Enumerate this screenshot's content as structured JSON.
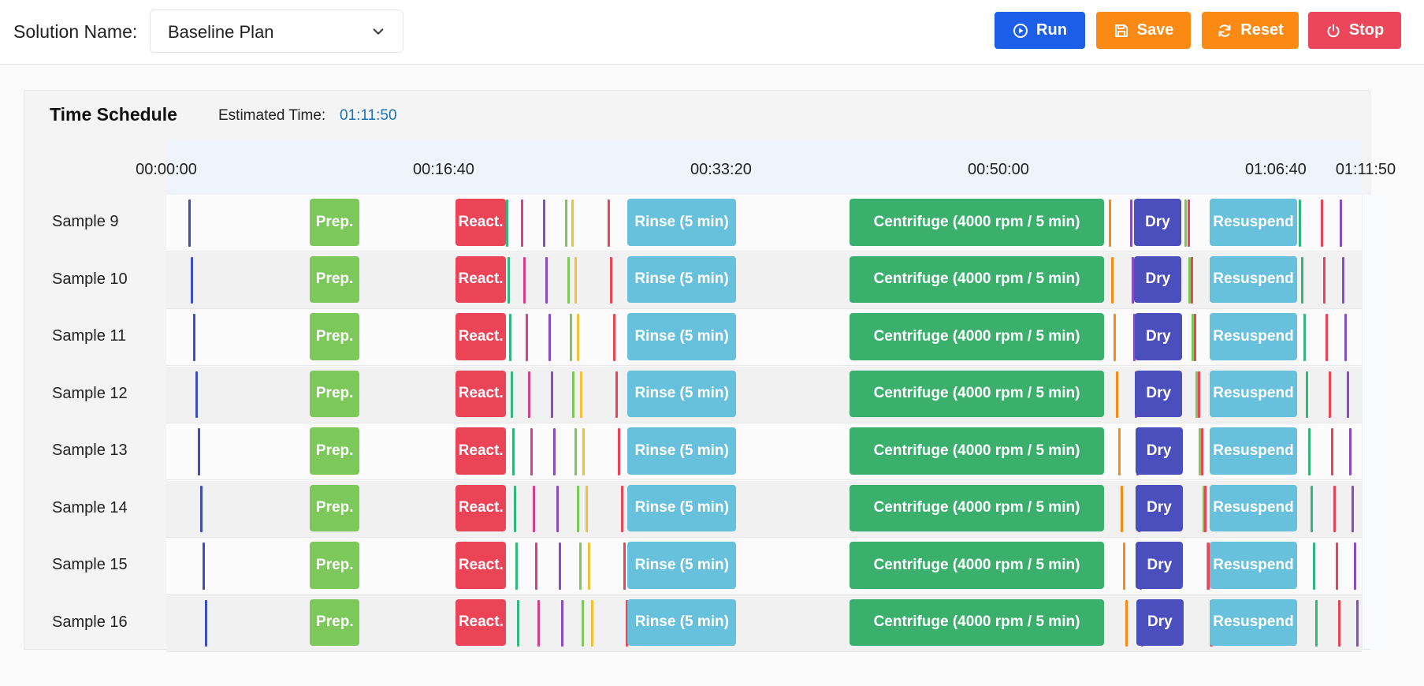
{
  "toolbar": {
    "solution_label": "Solution Name:",
    "solution_value": "Baseline Plan",
    "run_label": "Run",
    "save_label": "Save",
    "reset_label": "Reset",
    "stop_label": "Stop",
    "colors": {
      "run": "#1c5ee8",
      "save": "#fb8a15",
      "reset": "#fb8a15",
      "stop": "#eb4659"
    }
  },
  "schedule": {
    "title": "Time Schedule",
    "estimated_label": "Estimated Time:",
    "estimated_value": "01:11:50",
    "ticks": [
      "00:00:00",
      "00:16:40",
      "00:33:20",
      "00:50:00",
      "01:06:40",
      "01:11:50"
    ],
    "tick_seconds": [
      0,
      1000,
      2000,
      3000,
      4000,
      4310
    ],
    "total_seconds": 4310,
    "step_labels": {
      "prep": "Prep.",
      "react": "React.",
      "rinse": "Rinse (5 min)",
      "centrifuge": "Centrifuge (4000 rpm / 5 min)",
      "dry": "Dry",
      "resuspend": "Resuspend"
    },
    "step_colors": {
      "prep": "#7cc85a",
      "react": "#ec4457",
      "rinse": "#67c0dc",
      "centrifuge": "#3bb06d",
      "dry": "#4b4fbd",
      "resuspend": "#67c0dc"
    },
    "marker_colors": [
      "#3a4fc0",
      "#ec4457",
      "#d6408a",
      "#8a4cc2",
      "#7cc85a",
      "#f2c234",
      "#fb8a15",
      "#33b57f"
    ],
    "rows": [
      {
        "label": "Sample 9"
      },
      {
        "label": "Sample 10"
      },
      {
        "label": "Sample 11"
      },
      {
        "label": "Sample 12"
      },
      {
        "label": "Sample 13"
      },
      {
        "label": "Sample 14"
      },
      {
        "label": "Sample 15"
      },
      {
        "label": "Sample 16"
      }
    ]
  }
}
